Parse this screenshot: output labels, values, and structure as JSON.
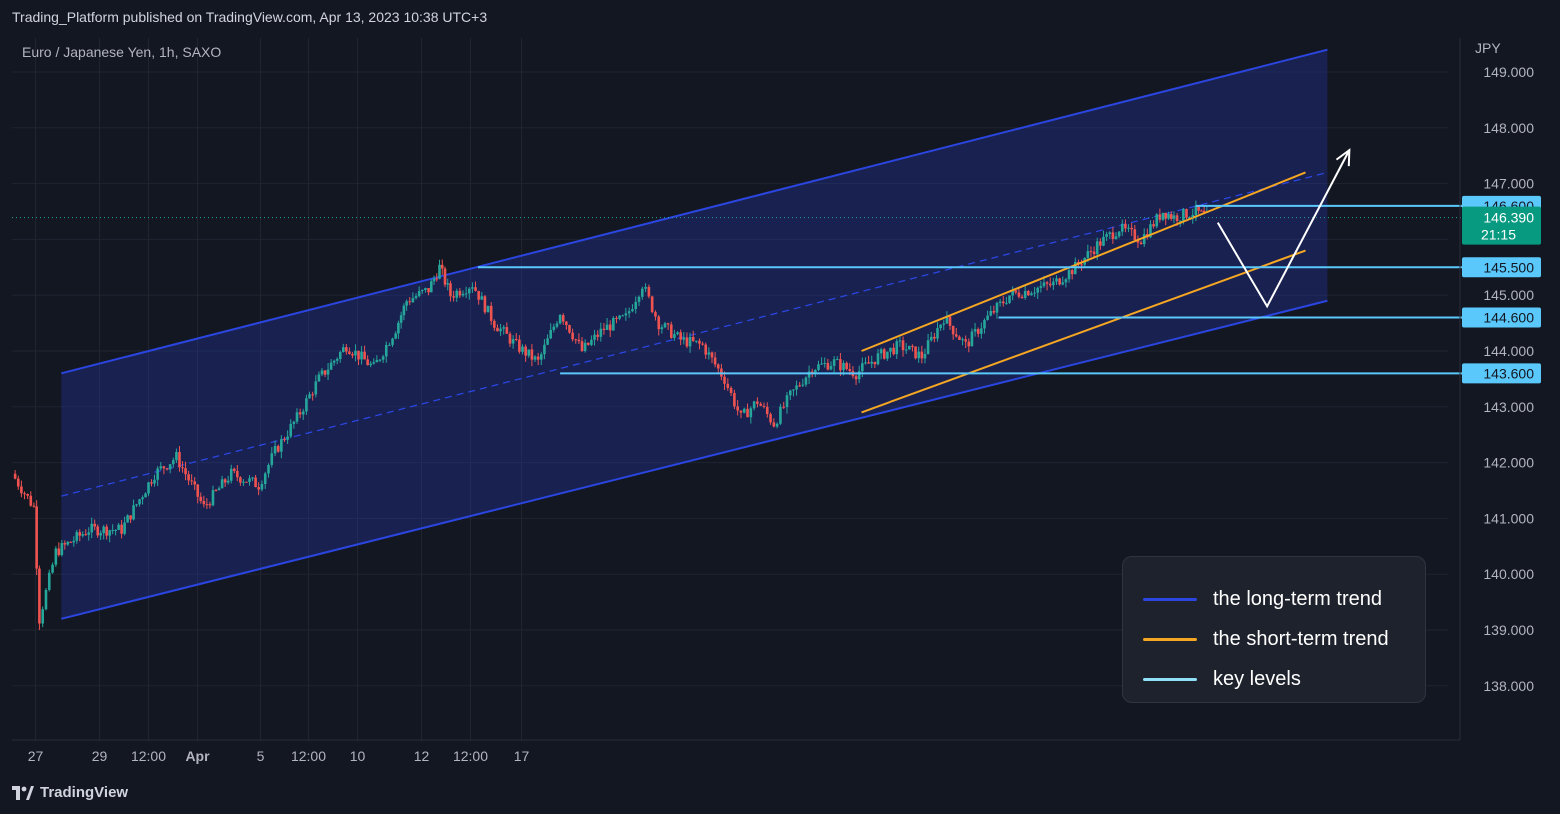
{
  "header": {
    "published": "Trading_Platform published on TradingView.com, Apr 13, 2023 10:38 UTC+3"
  },
  "footer": {
    "brand": "TradingView"
  },
  "chart_data": {
    "type": "candlestick",
    "title": "Euro / Japanese Yen, 1h, SAXO",
    "currency": "JPY",
    "y_range": [
      137.1,
      149.5
    ],
    "y_ticks": [
      "149.000",
      "148.000",
      "147.000",
      "146.000",
      "145.000",
      "144.000",
      "143.000",
      "142.000",
      "141.000",
      "140.000",
      "139.000",
      "138.000"
    ],
    "x_ticks": [
      "27",
      "29",
      "12:00",
      "Apr",
      "5",
      "12:00",
      "10",
      "12",
      "12:00",
      "17"
    ],
    "last_price": {
      "value": "146.390",
      "countdown": "21:15"
    },
    "key_levels": [
      "146.600",
      "145.500",
      "144.600",
      "143.600"
    ],
    "price_path": [
      {
        "t": 0,
        "p": 141.8
      },
      {
        "t": 4,
        "p": 141.2
      },
      {
        "t": 5,
        "p": 139.2
      },
      {
        "t": 8,
        "p": 140.4
      },
      {
        "t": 14,
        "p": 140.8
      },
      {
        "t": 20,
        "p": 140.8
      },
      {
        "t": 26,
        "p": 141.8
      },
      {
        "t": 30,
        "p": 142.1
      },
      {
        "t": 35,
        "p": 141.2
      },
      {
        "t": 40,
        "p": 141.8
      },
      {
        "t": 45,
        "p": 141.6
      },
      {
        "t": 48,
        "p": 142.2
      },
      {
        "t": 52,
        "p": 142.8
      },
      {
        "t": 56,
        "p": 143.5
      },
      {
        "t": 61,
        "p": 144.1
      },
      {
        "t": 66,
        "p": 143.7
      },
      {
        "t": 70,
        "p": 144.4
      },
      {
        "t": 72,
        "p": 144.9
      },
      {
        "t": 76,
        "p": 145.1
      },
      {
        "t": 78,
        "p": 145.5
      },
      {
        "t": 80,
        "p": 145.0
      },
      {
        "t": 84,
        "p": 145.2
      },
      {
        "t": 88,
        "p": 144.5
      },
      {
        "t": 92,
        "p": 144.1
      },
      {
        "t": 96,
        "p": 143.8
      },
      {
        "t": 100,
        "p": 144.7
      },
      {
        "t": 104,
        "p": 144.0
      },
      {
        "t": 108,
        "p": 144.4
      },
      {
        "t": 112,
        "p": 144.6
      },
      {
        "t": 115,
        "p": 145.2
      },
      {
        "t": 118,
        "p": 144.5
      },
      {
        "t": 122,
        "p": 144.2
      },
      {
        "t": 126,
        "p": 144.1
      },
      {
        "t": 130,
        "p": 143.5
      },
      {
        "t": 133,
        "p": 142.8
      },
      {
        "t": 136,
        "p": 143.1
      },
      {
        "t": 139,
        "p": 142.7
      },
      {
        "t": 142,
        "p": 143.2
      },
      {
        "t": 146,
        "p": 143.7
      },
      {
        "t": 150,
        "p": 143.8
      },
      {
        "t": 154,
        "p": 143.6
      },
      {
        "t": 158,
        "p": 143.9
      },
      {
        "t": 162,
        "p": 144.1
      },
      {
        "t": 166,
        "p": 143.9
      },
      {
        "t": 170,
        "p": 144.6
      },
      {
        "t": 174,
        "p": 144.1
      },
      {
        "t": 178,
        "p": 144.6
      },
      {
        "t": 182,
        "p": 145.0
      },
      {
        "t": 186,
        "p": 145.1
      },
      {
        "t": 190,
        "p": 145.2
      },
      {
        "t": 194,
        "p": 145.5
      },
      {
        "t": 198,
        "p": 145.9
      },
      {
        "t": 202,
        "p": 146.2
      },
      {
        "t": 206,
        "p": 146.0
      },
      {
        "t": 210,
        "p": 146.5
      },
      {
        "t": 212,
        "p": 146.4
      },
      {
        "t": 216,
        "p": 146.5
      },
      {
        "t": 218,
        "p": 146.39
      }
    ],
    "projection": [
      {
        "t": 220,
        "p": 146.3
      },
      {
        "t": 229,
        "p": 144.8
      },
      {
        "t": 244,
        "p": 147.6
      }
    ],
    "long_term_channel": {
      "upper": [
        {
          "t": 9,
          "p": 143.6
        },
        {
          "t": 240,
          "p": 149.4
        }
      ],
      "lower": [
        {
          "t": 9,
          "p": 139.2
        },
        {
          "t": 240,
          "p": 144.9
        }
      ],
      "mid": [
        {
          "t": 9,
          "p": 141.4
        },
        {
          "t": 240,
          "p": 147.2
        }
      ]
    },
    "short_term_channel": {
      "upper": [
        {
          "t": 155,
          "p": 144.0
        },
        {
          "t": 236,
          "p": 147.2
        }
      ],
      "lower": [
        {
          "t": 155,
          "p": 142.9
        },
        {
          "t": 236,
          "p": 145.8
        }
      ]
    },
    "level_lines": [
      {
        "price": 146.6,
        "t_from": 216
      },
      {
        "price": 145.5,
        "t_from": 85
      },
      {
        "price": 144.6,
        "t_from": 180
      },
      {
        "price": 143.6,
        "t_from": 100
      }
    ],
    "legend": [
      {
        "label": "the long-term trend",
        "color": "#2b46e0"
      },
      {
        "label": "the short-term trend",
        "color": "#f5a623"
      },
      {
        "label": "key levels",
        "color": "#8fe0f7"
      }
    ],
    "colors": {
      "up": "#26a69a",
      "down": "#ef5350",
      "label_bg": "#5ac8fa",
      "last_bg": "#089981"
    }
  }
}
